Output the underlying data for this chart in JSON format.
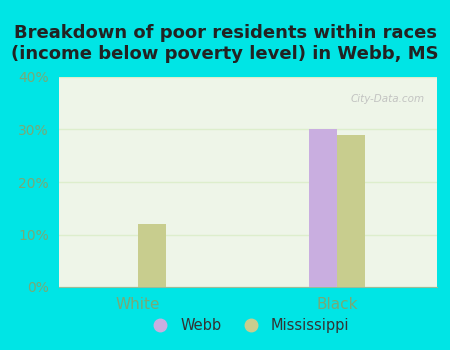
{
  "title": "Breakdown of poor residents within races\n(income below poverty level) in Webb, MS",
  "categories": [
    "White",
    "Black"
  ],
  "webb_values": [
    0,
    30.0
  ],
  "mississippi_values": [
    12.0,
    29.0
  ],
  "webb_color": "#c9aee0",
  "mississippi_color": "#c8cd8e",
  "background_color": "#00e5e5",
  "plot_bg_color": "#eef5e8",
  "ylim": [
    0,
    40
  ],
  "yticks": [
    0,
    10,
    20,
    30,
    40
  ],
  "ytick_labels": [
    "0%",
    "10%",
    "20%",
    "30%",
    "40%"
  ],
  "bar_width": 0.28,
  "title_fontsize": 13,
  "axis_label_color": "#77aa77",
  "ytick_color": "#77aa77",
  "grid_color": "#ddeecc",
  "watermark": "City-Data.com",
  "group_positions": [
    1.0,
    3.0
  ],
  "xlim": [
    0.2,
    4.0
  ]
}
